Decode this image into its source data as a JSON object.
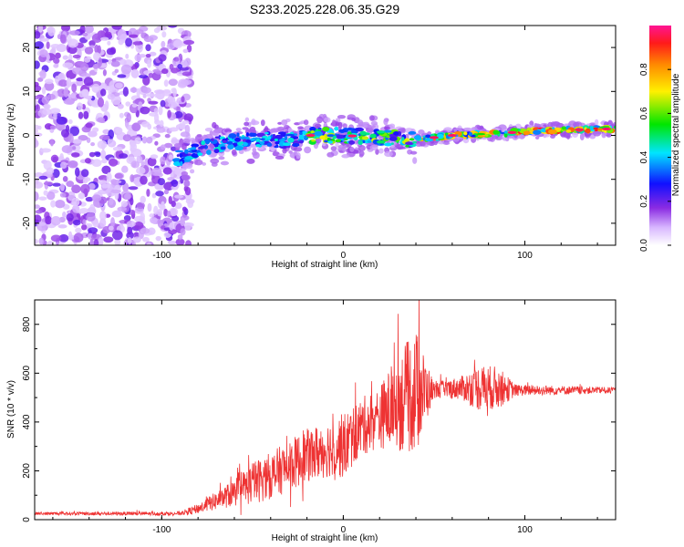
{
  "chart_data": [
    {
      "type": "heatmap",
      "title": "S233.2025.228.06.35.G29",
      "xlabel": "Height of straight line (km)",
      "ylabel": "Frequency (Hz)",
      "xlim": [
        -170,
        150
      ],
      "ylim": [
        -25,
        25
      ],
      "xticks": [
        -100,
        0,
        100
      ],
      "yticks": [
        -20,
        -10,
        0,
        10,
        20
      ],
      "colorbar": {
        "label": "Normalized spectral amplitude",
        "range": [
          0,
          1
        ],
        "ticks": [
          "0.0",
          "0.2",
          "0.4",
          "0.6",
          "0.8"
        ]
      },
      "features": {
        "noise_region_x": [
          -170,
          -88
        ],
        "signal_track": [
          {
            "x": -90,
            "f": -5
          },
          {
            "x": -70,
            "f": -2
          },
          {
            "x": -50,
            "f": -1
          },
          {
            "x": -30,
            "f": -1
          },
          {
            "x": -20,
            "f": 0
          },
          {
            "x": 0,
            "f": 0
          },
          {
            "x": 40,
            "f": -1
          },
          {
            "x": 60,
            "f": 0
          },
          {
            "x": 90,
            "f": 0.5
          },
          {
            "x": 100,
            "f": 1
          },
          {
            "x": 150,
            "f": 1.5
          }
        ],
        "peak_amplitude": 1.0
      }
    },
    {
      "type": "line",
      "xlabel": "Height of straight line (km)",
      "ylabel": "SNR (10 * v/v)",
      "xlim": [
        -170,
        150
      ],
      "ylim": [
        0,
        900
      ],
      "xticks": [
        -100,
        0,
        100
      ],
      "yticks": [
        0,
        200,
        400,
        600,
        800
      ],
      "series": [
        {
          "name": "SNR",
          "color": "#ee3333",
          "envelope": [
            {
              "x": -170,
              "mean": 25,
              "amp": 8
            },
            {
              "x": -90,
              "mean": 25,
              "amp": 10
            },
            {
              "x": -80,
              "mean": 45,
              "amp": 25
            },
            {
              "x": -60,
              "mean": 110,
              "amp": 70
            },
            {
              "x": -50,
              "mean": 150,
              "amp": 110
            },
            {
              "x": -40,
              "mean": 180,
              "amp": 120
            },
            {
              "x": -20,
              "mean": 260,
              "amp": 140
            },
            {
              "x": -5,
              "mean": 300,
              "amp": 150
            },
            {
              "x": 0,
              "mean": 300,
              "amp": 170
            },
            {
              "x": 10,
              "mean": 380,
              "amp": 150
            },
            {
              "x": 20,
              "mean": 420,
              "amp": 160
            },
            {
              "x": 30,
              "mean": 480,
              "amp": 250
            },
            {
              "x": 40,
              "mean": 520,
              "amp": 320
            },
            {
              "x": 50,
              "mean": 530,
              "amp": 40
            },
            {
              "x": 65,
              "mean": 540,
              "amp": 60
            },
            {
              "x": 75,
              "mean": 540,
              "amp": 120
            },
            {
              "x": 85,
              "mean": 540,
              "amp": 110
            },
            {
              "x": 95,
              "mean": 530,
              "amp": 30
            },
            {
              "x": 150,
              "mean": 530,
              "amp": 15
            }
          ]
        }
      ]
    }
  ]
}
